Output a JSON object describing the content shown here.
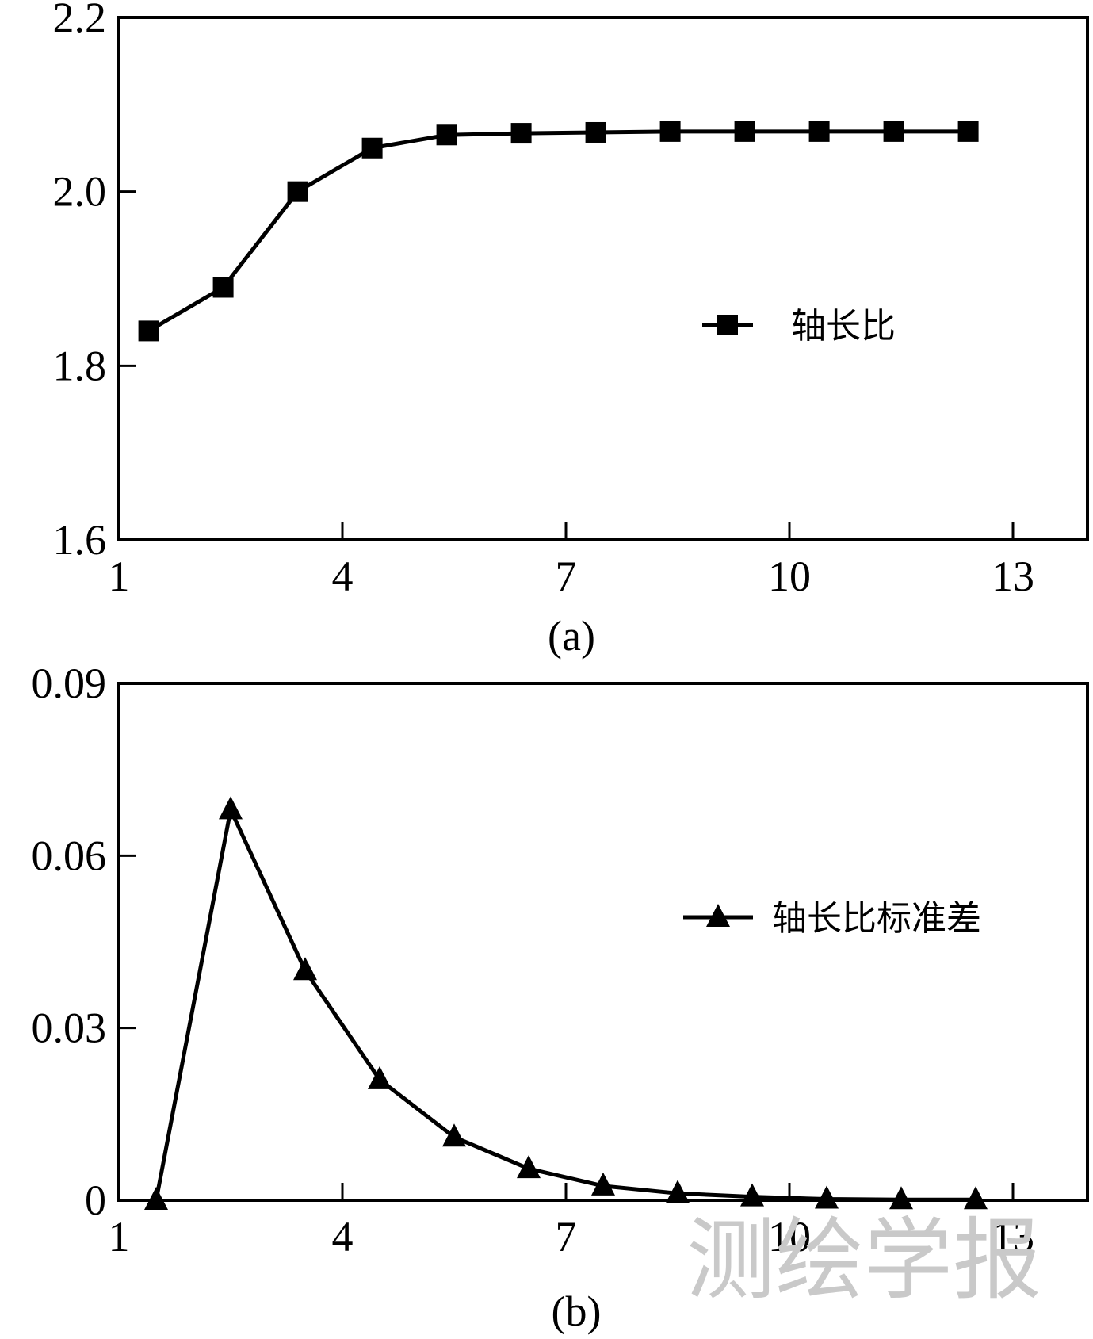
{
  "chart_data": [
    {
      "type": "line",
      "caption": "(a)",
      "x": [
        1.4,
        2.4,
        3.4,
        4.4,
        5.4,
        6.4,
        7.4,
        8.4,
        9.4,
        10.4,
        11.4,
        12.4
      ],
      "series": [
        {
          "name": "轴长比",
          "marker": "square",
          "values": [
            1.84,
            1.89,
            2.0,
            2.05,
            2.065,
            2.067,
            2.068,
            2.069,
            2.069,
            2.069,
            2.069,
            2.069
          ]
        }
      ],
      "xlim": [
        1,
        14
      ],
      "ylim": [
        1.6,
        2.2
      ],
      "xticks": [
        1,
        4,
        7,
        10,
        13
      ],
      "yticks": [
        1.6,
        1.8,
        2.0,
        2.2
      ],
      "xtick_labels": [
        "1",
        "4",
        "7",
        "10",
        "13"
      ],
      "ytick_labels": [
        "1.6",
        "1.8",
        "2.0",
        "2.2"
      ],
      "grid": false,
      "legend_position": "center-right"
    },
    {
      "type": "line",
      "caption": "(b)",
      "x": [
        1.5,
        2.5,
        3.5,
        4.5,
        5.5,
        6.5,
        7.5,
        8.5,
        9.5,
        10.5,
        11.5,
        12.5
      ],
      "series": [
        {
          "name": "轴长比标准差",
          "marker": "triangle",
          "values": [
            0.0,
            0.068,
            0.04,
            0.021,
            0.011,
            0.0055,
            0.0025,
            0.0012,
            0.0006,
            0.0002,
            0.0001,
            0.0001
          ]
        }
      ],
      "xlim": [
        1,
        14
      ],
      "ylim": [
        0,
        0.09
      ],
      "xticks": [
        1,
        4,
        7,
        10,
        13
      ],
      "yticks": [
        0,
        0.03,
        0.06,
        0.09
      ],
      "xtick_labels": [
        "1",
        "4",
        "7",
        "10",
        "13"
      ],
      "ytick_labels": [
        "0",
        "0.03",
        "0.06",
        "0.09"
      ],
      "grid": false,
      "legend_position": "top-right"
    }
  ],
  "watermark": "测绘学报"
}
